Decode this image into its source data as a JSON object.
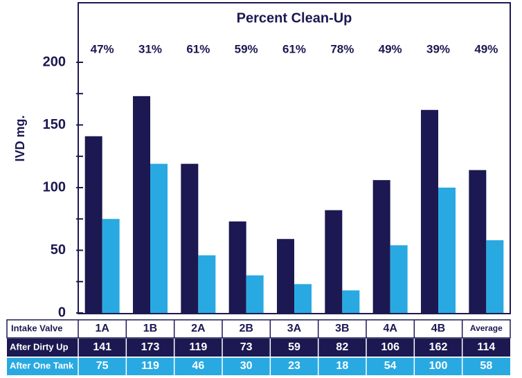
{
  "chart_data": {
    "type": "bar",
    "title": "Percent Clean-Up",
    "percent_labels": [
      "47%",
      "31%",
      "61%",
      "59%",
      "61%",
      "78%",
      "49%",
      "39%",
      "49%"
    ],
    "y_label": "IVD mg.",
    "table_header": "Intake Valve",
    "categories": [
      "1A",
      "1B",
      "2A",
      "2B",
      "3A",
      "3B",
      "4A",
      "4B",
      "Average"
    ],
    "series": [
      {
        "name": "After Dirty Up",
        "color": "#1c1851",
        "values": [
          141,
          173,
          119,
          73,
          59,
          82,
          106,
          162,
          114
        ]
      },
      {
        "name": "After One Tank",
        "color": "#29a9e1",
        "values": [
          75,
          119,
          46,
          30,
          23,
          18,
          54,
          100,
          58
        ]
      }
    ],
    "ylim": [
      0,
      200
    ],
    "yticks": [
      0,
      50,
      100,
      150,
      200
    ],
    "minor_yticks": [
      25,
      75,
      125,
      175
    ]
  }
}
